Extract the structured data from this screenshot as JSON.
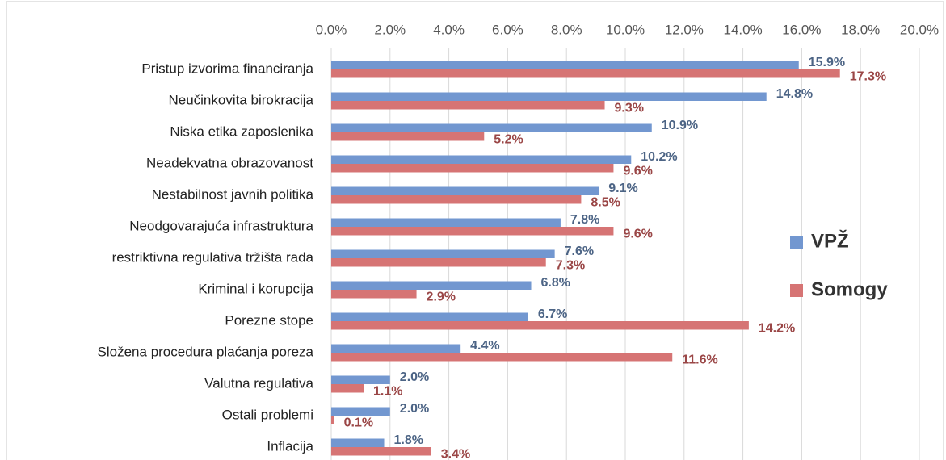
{
  "chart_data": {
    "type": "hbar",
    "categories": [
      "Pristup izvorima financiranja",
      "Neučinkovita birokracija",
      "Niska etika zaposlenika",
      "Neadekvatna obrazovanost",
      "Nestabilnost javnih politika",
      "Neodgovarajuća infrastruktura",
      "restriktivna regulativa tržišta rada",
      "Kriminal i korupcija",
      "Porezne stope",
      "Složena procedura plaćanja poreza",
      "Valutna regulativa",
      "Ostali problemi",
      "Inflacija"
    ],
    "series": [
      {
        "name": "VPŽ",
        "color": "#7297d0",
        "label_color": "#4c6485",
        "values": [
          15.9,
          14.8,
          10.9,
          10.2,
          9.1,
          7.8,
          7.6,
          6.8,
          6.7,
          4.4,
          2.0,
          2.0,
          1.8
        ],
        "value_labels": [
          "15.9%",
          "14.8%",
          "10.9%",
          "10.2%",
          "9.1%",
          "7.8%",
          "7.6%",
          "6.8%",
          "6.7%",
          "4.4%",
          "2.0%",
          "2.0%",
          "1.8%"
        ]
      },
      {
        "name": "Somogy",
        "color": "#d67474",
        "label_color": "#9a4646",
        "values": [
          17.3,
          9.3,
          5.2,
          9.6,
          8.5,
          9.6,
          7.3,
          2.9,
          14.2,
          11.6,
          1.1,
          0.1,
          3.4
        ],
        "value_labels": [
          "17.3%",
          "9.3%",
          "5.2%",
          "9.6%",
          "8.5%",
          "9.6%",
          "7.3%",
          "2.9%",
          "14.2%",
          "11.6%",
          "1.1%",
          "0.1%",
          "3.4%"
        ]
      }
    ],
    "xlim": [
      0,
      20
    ],
    "xticks": [
      {
        "value": 0,
        "label": "0.0%"
      },
      {
        "value": 2,
        "label": "2.0%"
      },
      {
        "value": 4,
        "label": "4.0%"
      },
      {
        "value": 6,
        "label": "6.0%"
      },
      {
        "value": 8,
        "label": "8.0%"
      },
      {
        "value": 10,
        "label": "10.0%"
      },
      {
        "value": 12,
        "label": "12.0%"
      },
      {
        "value": 14,
        "label": "14.0%"
      },
      {
        "value": 16,
        "label": "16.0%"
      },
      {
        "value": 18,
        "label": "18.0%"
      },
      {
        "value": 20,
        "label": "20.0%"
      }
    ],
    "grid": true,
    "legend": "right"
  }
}
